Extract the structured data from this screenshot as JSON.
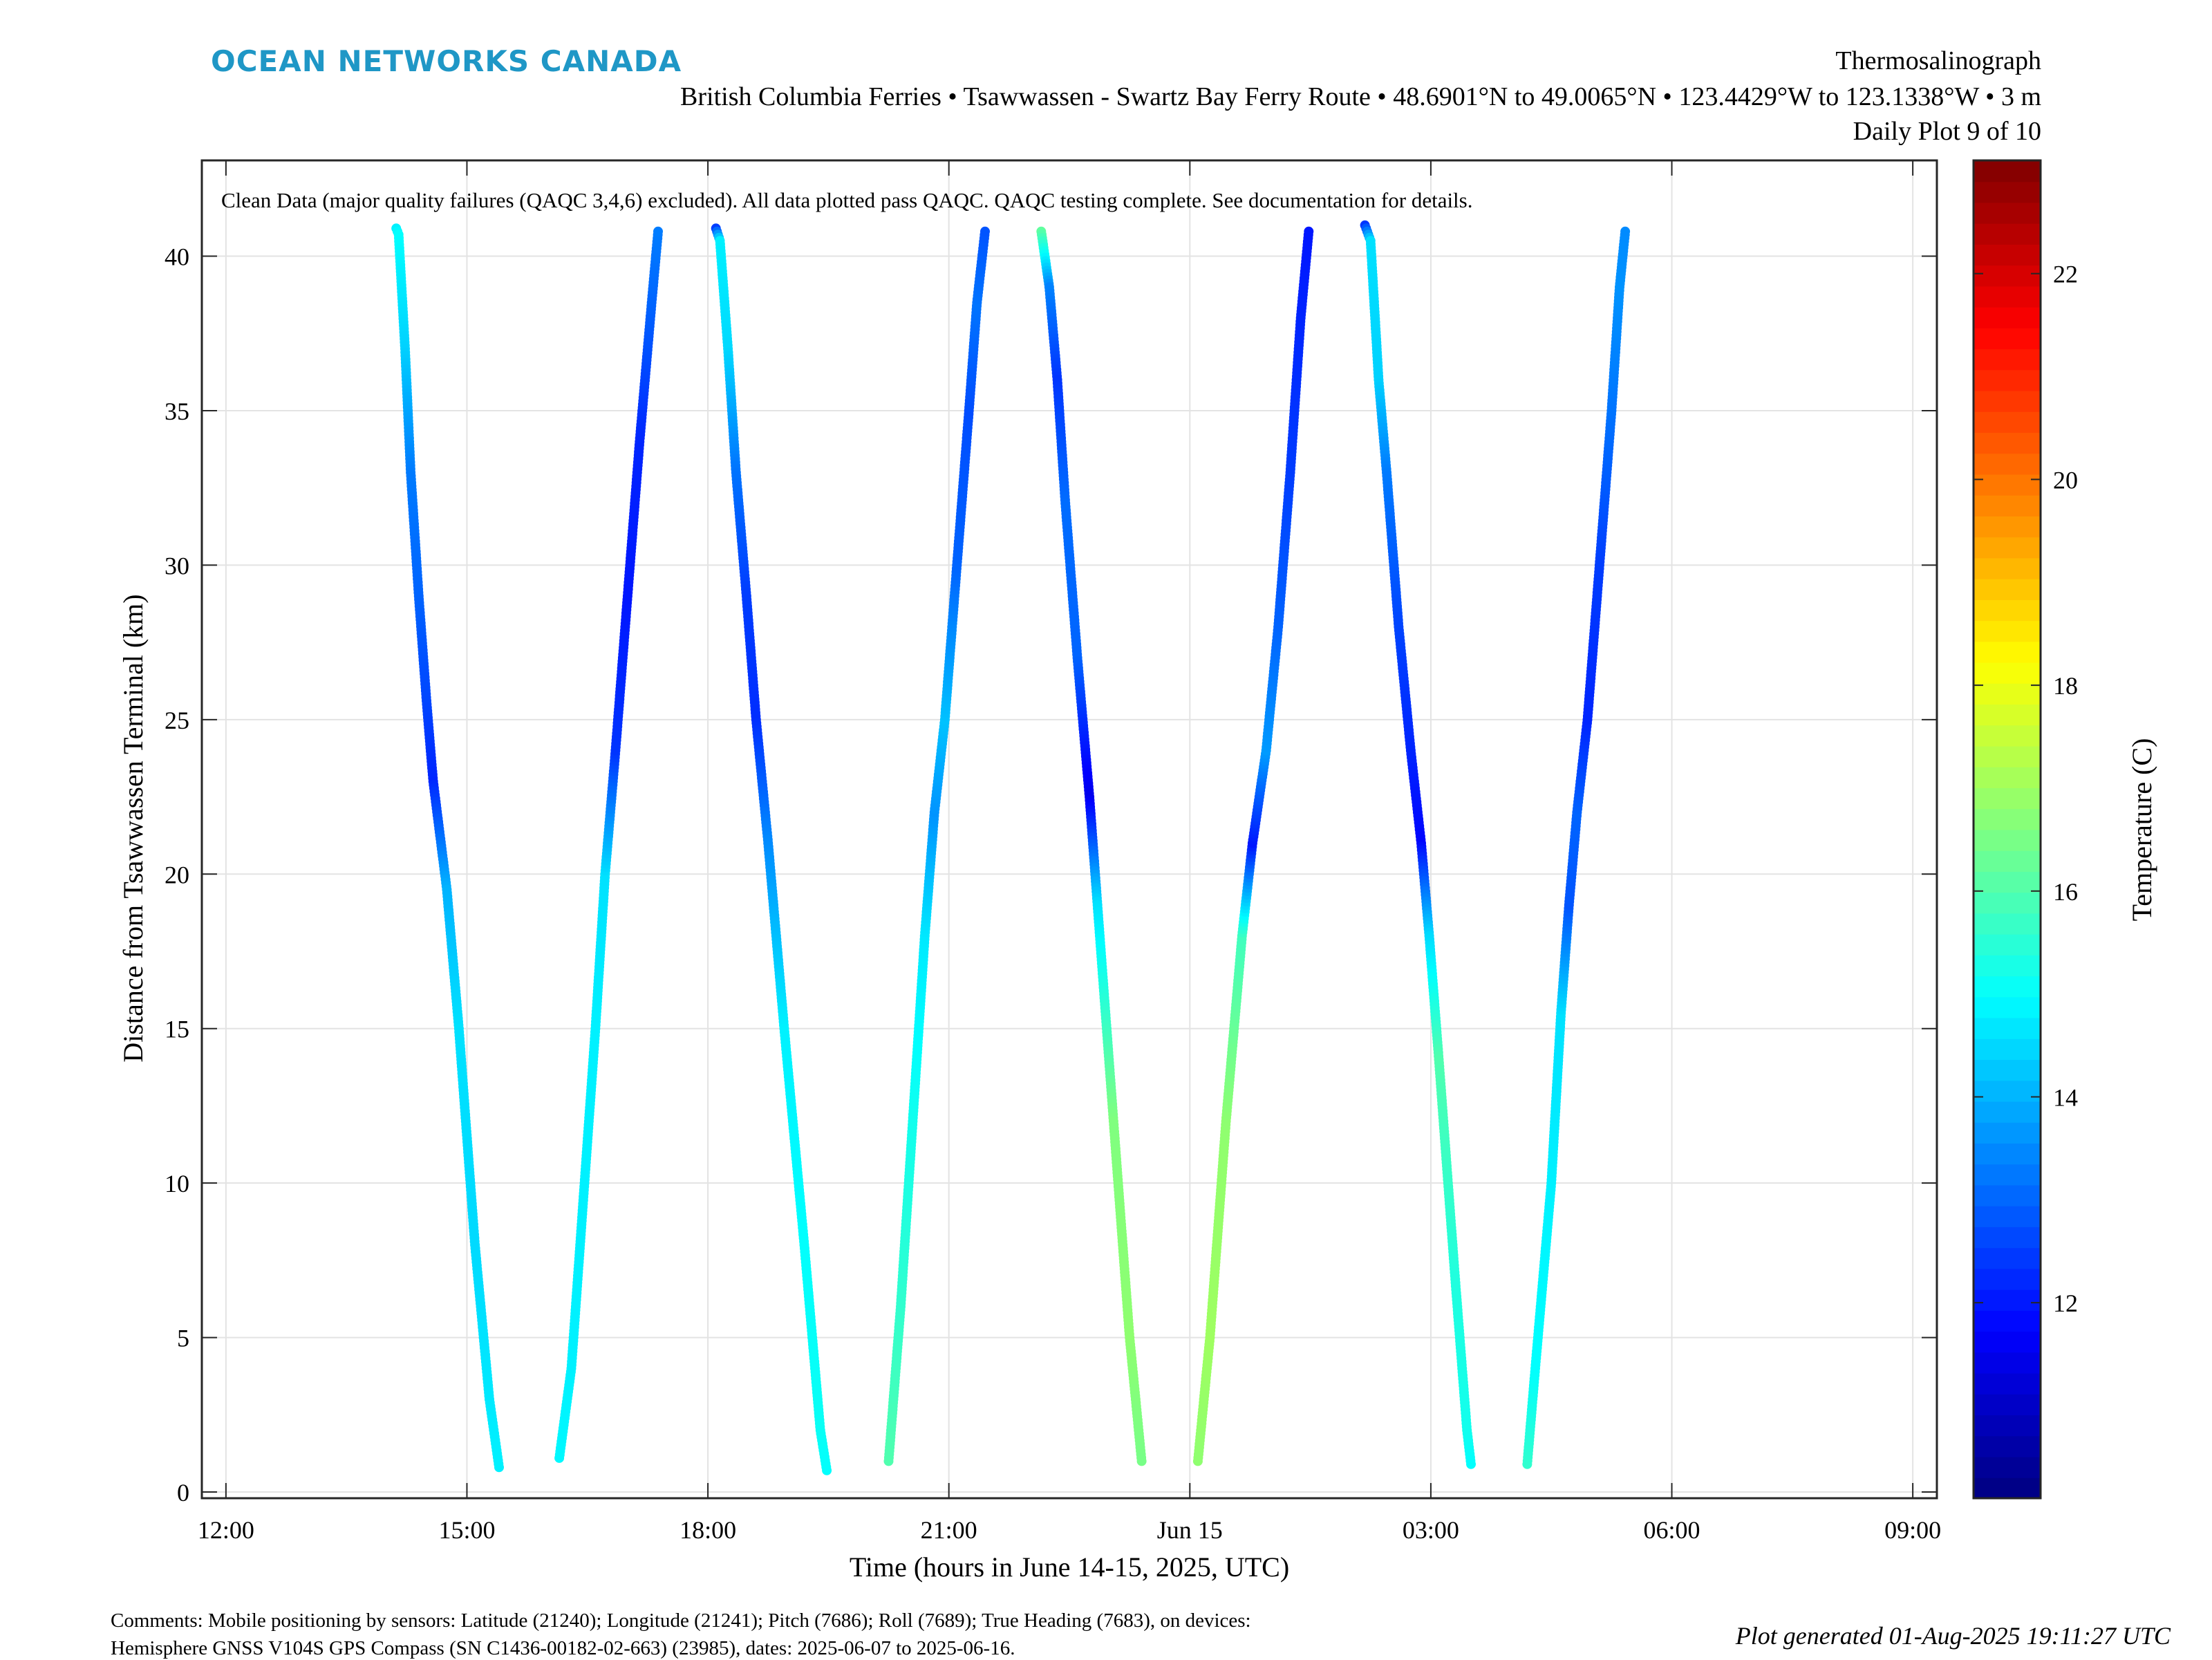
{
  "header": {
    "brand": "OCEAN NETWORKS CANADA",
    "title": "Thermosalinograph",
    "subtitle": "British Columbia Ferries • Tsawwassen - Swartz Bay Ferry Route • 48.6901°N to 49.0065°N • 123.4429°W to 123.1338°W • 3 m",
    "plot_number": "Daily Plot 9 of 10"
  },
  "footer": {
    "comments_line1": "Comments: Mobile positioning by sensors: Latitude (21240); Longitude (21241); Pitch (7686); Roll (7689); True Heading (7683), on devices:",
    "comments_line2": "Hemisphere GNSS V104S GPS Compass (SN C1436-00182-02-663) (23985), dates: 2025-06-07 to 2025-06-16.",
    "generated": "Plot generated 01-Aug-2025 19:11:27 UTC"
  },
  "chart_data": {
    "type": "scatter",
    "annotation": "Clean Data (major quality failures (QAQC 3,4,6) excluded). All data plotted pass QAQC. QAQC testing complete. See documentation for details.",
    "xlabel": "Time (hours in June 14-15, 2025, UTC)",
    "ylabel": "Distance from Tsawwassen Terminal (km)",
    "colorbar_label": "Temperature (C)",
    "x_unit": "hours since 2025-06-14 00:00 UTC",
    "xlim": [
      11.7,
      33.3
    ],
    "ylim": [
      -0.2,
      43.1
    ],
    "x_ticks": [
      {
        "value": 12,
        "label": "12:00"
      },
      {
        "value": 15,
        "label": "15:00"
      },
      {
        "value": 18,
        "label": "18:00"
      },
      {
        "value": 21,
        "label": "21:00"
      },
      {
        "value": 24,
        "label": "Jun 15"
      },
      {
        "value": 27,
        "label": "03:00"
      },
      {
        "value": 30,
        "label": "06:00"
      },
      {
        "value": 33,
        "label": "09:00"
      }
    ],
    "y_ticks": [
      0,
      5,
      10,
      15,
      20,
      25,
      30,
      35,
      40
    ],
    "colorbar": {
      "colormap": "jet",
      "clim": [
        10.1,
        23.1
      ],
      "ticks": [
        12,
        14,
        16,
        18,
        20,
        22
      ]
    },
    "grid": true,
    "series": [
      {
        "direction": "outbound",
        "points": [
          {
            "t": 14.12,
            "km": 40.9,
            "temp": 14.8
          },
          {
            "t": 14.15,
            "km": 40.7,
            "temp": 15.0
          },
          {
            "t": 14.23,
            "km": 37.0,
            "temp": 14.4
          },
          {
            "t": 14.3,
            "km": 33.0,
            "temp": 13.3
          },
          {
            "t": 14.4,
            "km": 29.0,
            "temp": 13.0
          },
          {
            "t": 14.5,
            "km": 25.5,
            "temp": 12.6
          },
          {
            "t": 14.58,
            "km": 23.0,
            "temp": 12.2
          },
          {
            "t": 14.75,
            "km": 19.5,
            "temp": 14.0
          },
          {
            "t": 14.9,
            "km": 15.0,
            "temp": 14.6
          },
          {
            "t": 15.1,
            "km": 8.0,
            "temp": 14.5
          },
          {
            "t": 15.28,
            "km": 3.0,
            "temp": 14.7
          },
          {
            "t": 15.4,
            "km": 0.8,
            "temp": 14.8
          }
        ]
      },
      {
        "direction": "return",
        "points": [
          {
            "t": 16.15,
            "km": 1.1,
            "temp": 14.9
          },
          {
            "t": 16.3,
            "km": 4.0,
            "temp": 14.8
          },
          {
            "t": 16.6,
            "km": 15.0,
            "temp": 14.8
          },
          {
            "t": 16.72,
            "km": 20.0,
            "temp": 14.6
          },
          {
            "t": 16.85,
            "km": 24.0,
            "temp": 12.4
          },
          {
            "t": 17.0,
            "km": 29.0,
            "temp": 12.0
          },
          {
            "t": 17.15,
            "km": 34.0,
            "temp": 12.2
          },
          {
            "t": 17.3,
            "km": 38.5,
            "temp": 13.0
          },
          {
            "t": 17.38,
            "km": 40.8,
            "temp": 13.3
          }
        ]
      },
      {
        "direction": "outbound",
        "points": [
          {
            "t": 18.1,
            "km": 40.9,
            "temp": 12.5
          },
          {
            "t": 18.15,
            "km": 40.5,
            "temp": 14.8
          },
          {
            "t": 18.25,
            "km": 37.0,
            "temp": 14.5
          },
          {
            "t": 18.35,
            "km": 33.0,
            "temp": 13.2
          },
          {
            "t": 18.48,
            "km": 29.0,
            "temp": 12.5
          },
          {
            "t": 18.6,
            "km": 25.0,
            "temp": 12.3
          },
          {
            "t": 18.75,
            "km": 21.0,
            "temp": 13.5
          },
          {
            "t": 18.95,
            "km": 15.0,
            "temp": 14.8
          },
          {
            "t": 19.2,
            "km": 8.0,
            "temp": 15.0
          },
          {
            "t": 19.4,
            "km": 2.0,
            "temp": 15.1
          },
          {
            "t": 19.48,
            "km": 0.7,
            "temp": 15.0
          }
        ]
      },
      {
        "direction": "return",
        "points": [
          {
            "t": 20.25,
            "km": 1.0,
            "temp": 16.0
          },
          {
            "t": 20.4,
            "km": 6.0,
            "temp": 15.6
          },
          {
            "t": 20.55,
            "km": 12.0,
            "temp": 15.2
          },
          {
            "t": 20.7,
            "km": 18.0,
            "temp": 14.7
          },
          {
            "t": 20.82,
            "km": 22.0,
            "temp": 13.6
          },
          {
            "t": 20.95,
            "km": 25.0,
            "temp": 14.2
          },
          {
            "t": 21.1,
            "km": 30.0,
            "temp": 13.0
          },
          {
            "t": 21.25,
            "km": 35.0,
            "temp": 12.7
          },
          {
            "t": 21.35,
            "km": 38.5,
            "temp": 13.2
          },
          {
            "t": 21.45,
            "km": 40.8,
            "temp": 12.8
          }
        ]
      },
      {
        "direction": "outbound",
        "points": [
          {
            "t": 22.15,
            "km": 40.8,
            "temp": 16.2
          },
          {
            "t": 22.25,
            "km": 39.0,
            "temp": 13.4
          },
          {
            "t": 22.35,
            "km": 36.0,
            "temp": 12.4
          },
          {
            "t": 22.45,
            "km": 32.0,
            "temp": 13.1
          },
          {
            "t": 22.6,
            "km": 27.0,
            "temp": 13.0
          },
          {
            "t": 22.75,
            "km": 22.5,
            "temp": 11.5
          },
          {
            "t": 22.85,
            "km": 19.0,
            "temp": 14.6
          },
          {
            "t": 23.05,
            "km": 12.0,
            "temp": 16.6
          },
          {
            "t": 23.25,
            "km": 5.0,
            "temp": 16.8
          },
          {
            "t": 23.4,
            "km": 1.0,
            "temp": 16.5
          }
        ]
      },
      {
        "direction": "return",
        "points": [
          {
            "t": 24.1,
            "km": 1.0,
            "temp": 16.8
          },
          {
            "t": 24.25,
            "km": 5.0,
            "temp": 17.0
          },
          {
            "t": 24.45,
            "km": 12.0,
            "temp": 16.8
          },
          {
            "t": 24.65,
            "km": 18.0,
            "temp": 15.8
          },
          {
            "t": 24.78,
            "km": 21.0,
            "temp": 12.0
          },
          {
            "t": 24.95,
            "km": 24.0,
            "temp": 13.7
          },
          {
            "t": 25.1,
            "km": 28.0,
            "temp": 13.0
          },
          {
            "t": 25.25,
            "km": 33.0,
            "temp": 12.5
          },
          {
            "t": 25.38,
            "km": 38.0,
            "temp": 12.2
          },
          {
            "t": 25.48,
            "km": 40.8,
            "temp": 12.0
          }
        ]
      },
      {
        "direction": "outbound",
        "points": [
          {
            "t": 26.18,
            "km": 41.0,
            "temp": 12.4
          },
          {
            "t": 26.25,
            "km": 40.5,
            "temp": 14.6
          },
          {
            "t": 26.35,
            "km": 36.0,
            "temp": 14.4
          },
          {
            "t": 26.45,
            "km": 33.0,
            "temp": 13.3
          },
          {
            "t": 26.6,
            "km": 28.0,
            "temp": 12.6
          },
          {
            "t": 26.75,
            "km": 24.0,
            "temp": 12.2
          },
          {
            "t": 26.88,
            "km": 21.0,
            "temp": 11.8
          },
          {
            "t": 26.98,
            "km": 18.0,
            "temp": 14.5
          },
          {
            "t": 27.1,
            "km": 14.0,
            "temp": 16.0
          },
          {
            "t": 27.3,
            "km": 7.0,
            "temp": 15.4
          },
          {
            "t": 27.45,
            "km": 2.0,
            "temp": 15.2
          },
          {
            "t": 27.5,
            "km": 0.9,
            "temp": 15.0
          }
        ]
      },
      {
        "direction": "return",
        "points": [
          {
            "t": 28.2,
            "km": 0.9,
            "temp": 15.6
          },
          {
            "t": 28.3,
            "km": 4.0,
            "temp": 15.0
          },
          {
            "t": 28.5,
            "km": 10.0,
            "temp": 14.8
          },
          {
            "t": 28.62,
            "km": 15.5,
            "temp": 14.6
          },
          {
            "t": 28.72,
            "km": 19.0,
            "temp": 12.8
          },
          {
            "t": 28.82,
            "km": 22.0,
            "temp": 13.0
          },
          {
            "t": 28.95,
            "km": 25.0,
            "temp": 12.2
          },
          {
            "t": 29.1,
            "km": 30.0,
            "temp": 12.5
          },
          {
            "t": 29.25,
            "km": 35.0,
            "temp": 13.2
          },
          {
            "t": 29.35,
            "km": 39.0,
            "temp": 13.6
          },
          {
            "t": 29.42,
            "km": 40.8,
            "temp": 13.5
          }
        ]
      }
    ]
  }
}
